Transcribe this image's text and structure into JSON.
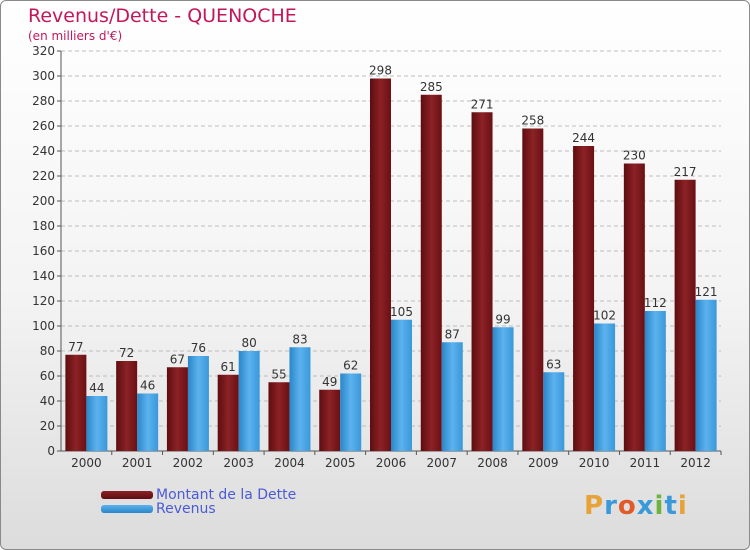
{
  "chart_data": {
    "type": "bar",
    "title": "Revenus/Dette - QUENOCHE",
    "subtitle": "(en milliers d'€)",
    "categories": [
      "2000",
      "2001",
      "2002",
      "2003",
      "2004",
      "2005",
      "2006",
      "2007",
      "2008",
      "2009",
      "2010",
      "2011",
      "2012"
    ],
    "series": [
      {
        "name": "Montant de la Dette",
        "color": "#7a1418",
        "values": [
          77,
          72,
          67,
          61,
          55,
          49,
          298,
          285,
          271,
          258,
          244,
          230,
          217
        ]
      },
      {
        "name": "Revenus",
        "color": "#3d9ee0",
        "values": [
          44,
          46,
          76,
          80,
          83,
          62,
          105,
          87,
          99,
          63,
          102,
          112,
          121
        ]
      }
    ],
    "ylim": [
      0,
      320
    ],
    "ytick_step": 20,
    "grid": true,
    "legend_position": "bottom-left",
    "xlabel": "",
    "ylabel": ""
  },
  "logo": {
    "text": "Proxiti",
    "colors": [
      "#e8a23a",
      "#3a9ad9",
      "#e05a2a",
      "#3a9ad9",
      "#6db33f",
      "#3a9ad9",
      "#e8a23a"
    ]
  }
}
